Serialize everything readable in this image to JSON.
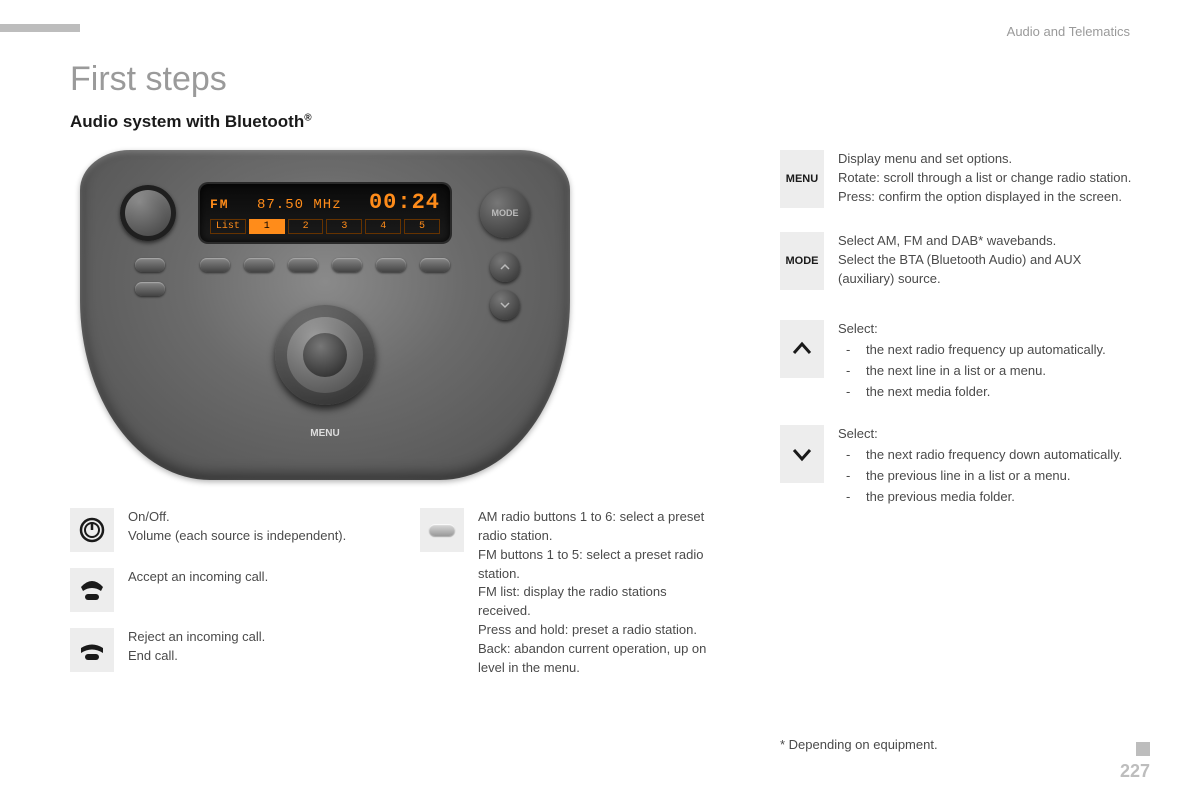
{
  "header": {
    "section": "Audio and Telematics",
    "page_number": "227"
  },
  "title": "First steps",
  "subtitle": "Audio system with Bluetooth",
  "radio": {
    "band": "FM",
    "frequency": "87.50 MHz",
    "time": "00:24",
    "presets": [
      "List",
      "1",
      "2",
      "3",
      "4",
      "5"
    ],
    "mode_label": "MODE",
    "menu_label": "MENU",
    "colors": {
      "body_light": "#8a8a8a",
      "body_dark": "#4f4f4f",
      "screen_bg": "#0a0a0a",
      "text": "#ff8c1a"
    }
  },
  "left_col": [
    {
      "icon": "power",
      "text": "On/Off.\nVolume (each source is independent)."
    },
    {
      "icon": "phone-up",
      "text": "Accept an incoming call."
    },
    {
      "icon": "phone-down",
      "text": "Reject an incoming call.\nEnd call."
    }
  ],
  "mid_col": {
    "icon": "pill",
    "text": "AM radio buttons 1 to 6: select a preset radio station.\nFM buttons 1 to 5: select a preset radio station.\nFM list: display the radio stations received.\nPress and hold: preset a radio station.\nBack: abandon current operation, up on level in the menu."
  },
  "right_col": [
    {
      "icon": "menu-text",
      "icon_label": "MENU",
      "text": "Display menu and set options.\nRotate: scroll through a list or change radio station.\nPress: confirm the option displayed in the screen."
    },
    {
      "icon": "mode-text",
      "icon_label": "MODE",
      "text": "Select AM, FM and DAB* wavebands.\nSelect the BTA (Bluetooth Audio) and AUX (auxiliary) source."
    },
    {
      "icon": "chev-up",
      "lead": "Select:",
      "bullets": [
        "the next radio frequency up automatically.",
        "the next line in a list or a menu.",
        "the next media folder."
      ]
    },
    {
      "icon": "chev-down",
      "lead": "Select:",
      "bullets": [
        "the next radio frequency down automatically.",
        "the previous line in a list or a menu.",
        "the previous media folder."
      ]
    }
  ],
  "footnote": "* Depending on equipment."
}
